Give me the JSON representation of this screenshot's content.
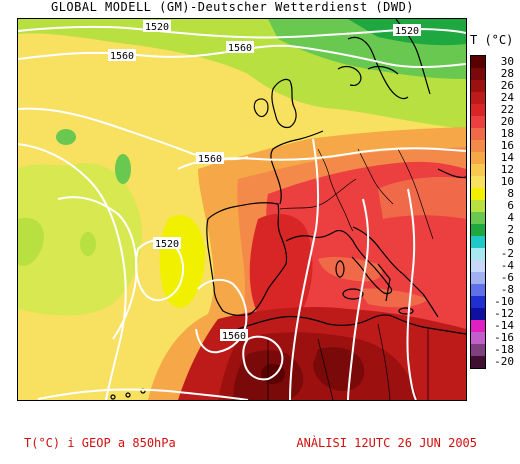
{
  "header": {
    "title": "GLOBAL MODELL (GM)-Deutscher Wetterdienst (DWD)"
  },
  "legend": {
    "title": "T (°C)",
    "entries": [
      {
        "label": "30",
        "color": "#5a0000"
      },
      {
        "label": "28",
        "color": "#7a0a0a"
      },
      {
        "label": "26",
        "color": "#9c1010"
      },
      {
        "label": "24",
        "color": "#bd1a1a"
      },
      {
        "label": "22",
        "color": "#d82626"
      },
      {
        "label": "20",
        "color": "#ec4040"
      },
      {
        "label": "18",
        "color": "#f06a4a"
      },
      {
        "label": "16",
        "color": "#f48a4a"
      },
      {
        "label": "14",
        "color": "#f6a848"
      },
      {
        "label": "12",
        "color": "#f8c850"
      },
      {
        "label": "10",
        "color": "#f8e060"
      },
      {
        "label": "8",
        "color": "#f0f000"
      },
      {
        "label": "6",
        "color": "#b8e040"
      },
      {
        "label": "4",
        "color": "#68c850"
      },
      {
        "label": "2",
        "color": "#20a840"
      },
      {
        "label": "0",
        "color": "#20c8c8"
      },
      {
        "label": "-2",
        "color": "#a8e8f0"
      },
      {
        "label": "-4",
        "color": "#c8d8f8"
      },
      {
        "label": "-6",
        "color": "#a0b0f0"
      },
      {
        "label": "-8",
        "color": "#6070e8"
      },
      {
        "label": "-10",
        "color": "#2030d0"
      },
      {
        "label": "-12",
        "color": "#1010a0"
      },
      {
        "label": "-14",
        "color": "#e020c0"
      },
      {
        "label": "-16",
        "color": "#c060c8"
      },
      {
        "label": "-18",
        "color": "#804080"
      },
      {
        "label": "-20",
        "color": "#401030"
      }
    ]
  },
  "isolines": {
    "labels": [
      "1520",
      "1560",
      "1560",
      "1520",
      "1560",
      "1520",
      "1560",
      "1560"
    ]
  },
  "footer": {
    "variable": "T(°C) i GEOP a 850hPa",
    "analysis": "ANÀLISI 12UTC 26 JUN 2005"
  }
}
